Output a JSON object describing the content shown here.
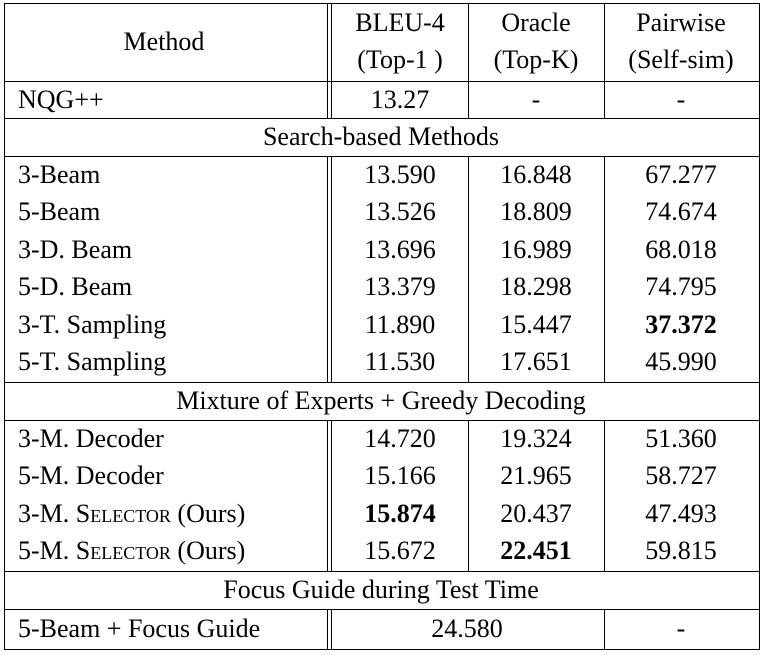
{
  "header": {
    "method": "Method",
    "bleu_line1": "BLEU-4",
    "bleu_line2": "(Top-1 )",
    "oracle_line1": "Oracle",
    "oracle_line2": "(Top-K)",
    "pairwise_line1": "Pairwise",
    "pairwise_line2": "(Self-sim)"
  },
  "baseline": {
    "method": "NQG++",
    "bleu": "13.27",
    "oracle": "-",
    "pairwise": "-"
  },
  "sections": [
    {
      "title": "Search-based Methods",
      "rows": [
        {
          "method": "3-Beam",
          "bleu": "13.590",
          "oracle": "16.848",
          "pairwise": "67.277"
        },
        {
          "method": "5-Beam",
          "bleu": "13.526",
          "oracle": "18.809",
          "pairwise": "74.674"
        },
        {
          "method": "3-D. Beam",
          "bleu": "13.696",
          "oracle": "16.989",
          "pairwise": "68.018"
        },
        {
          "method": "5-D. Beam",
          "bleu": "13.379",
          "oracle": "18.298",
          "pairwise": "74.795"
        },
        {
          "method": "3-T. Sampling",
          "bleu": "11.890",
          "oracle": "15.447",
          "pairwise": "37.372"
        },
        {
          "method": "5-T. Sampling",
          "bleu": "11.530",
          "oracle": "17.651",
          "pairwise": "45.990"
        }
      ]
    },
    {
      "title": "Mixture of Experts + Greedy Decoding",
      "rows": [
        {
          "method": "3-M. Decoder",
          "bleu": "14.720",
          "oracle": "19.324",
          "pairwise": "51.360"
        },
        {
          "method": "5-M. Decoder",
          "bleu": "15.166",
          "oracle": "21.965",
          "pairwise": "58.727"
        },
        {
          "method_prefix": "3-M. ",
          "method_sc": "Selector",
          "method_suffix": " (Ours)",
          "bleu": "15.874",
          "oracle": "20.437",
          "pairwise": "47.493"
        },
        {
          "method_prefix": "5-M. ",
          "method_sc": "Selector",
          "method_suffix": " (Ours)",
          "bleu": "15.672",
          "oracle": "22.451",
          "pairwise": "59.815"
        }
      ]
    },
    {
      "title": "Focus Guide during Test Time",
      "rows": [
        {
          "method": "5-Beam + Focus Guide",
          "merged": "24.580",
          "pairwise": "-"
        }
      ]
    }
  ]
}
